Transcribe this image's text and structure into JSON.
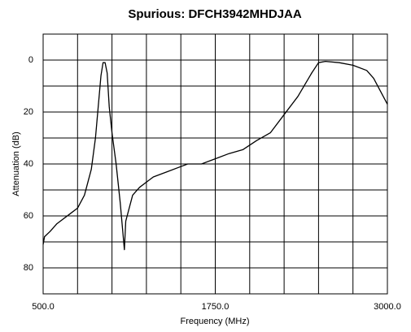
{
  "chart_data": {
    "type": "line",
    "title": "Spurious: DFCH3942MHDJAA",
    "xlabel": "Frequency (MHz)",
    "ylabel": "Attenuation (dB)",
    "x": [
      500,
      510,
      550,
      600,
      700,
      750,
      800,
      850,
      880,
      900,
      920,
      935,
      950,
      965,
      980,
      1000,
      1030,
      1060,
      1090,
      1100,
      1150,
      1200,
      1250,
      1300,
      1400,
      1500,
      1550,
      1650,
      1750,
      1850,
      1950,
      2050,
      2150,
      2250,
      2350,
      2450,
      2500,
      2550,
      2650,
      2750,
      2850,
      2900,
      2950,
      3000
    ],
    "values": [
      71,
      68,
      66,
      63,
      59,
      57,
      52,
      42,
      30,
      18,
      6,
      1,
      1,
      5,
      18,
      28,
      40,
      55,
      73,
      62,
      52,
      49,
      47,
      45,
      43,
      41,
      40,
      40,
      38,
      36,
      34.5,
      31,
      28,
      21,
      14,
      5,
      1,
      0.5,
      1,
      2,
      4,
      7,
      12,
      17
    ],
    "color": "#000000",
    "xlim": [
      500,
      3000
    ],
    "xticks": [
      {
        "value": 500,
        "label": "500.0"
      },
      {
        "value": 750,
        "label": null
      },
      {
        "value": 1000,
        "label": null
      },
      {
        "value": 1250,
        "label": null
      },
      {
        "value": 1500,
        "label": null
      },
      {
        "value": 1750,
        "label": "1750.0"
      },
      {
        "value": 2000,
        "label": null
      },
      {
        "value": 2250,
        "label": null
      },
      {
        "value": 2500,
        "label": null
      },
      {
        "value": 2750,
        "label": null
      },
      {
        "value": 3000,
        "label": "3000.0"
      }
    ],
    "ylim": [
      -10,
      90
    ],
    "yticks": [
      {
        "value": -10,
        "label": null
      },
      0,
      {
        "value": 10,
        "label": null
      },
      20,
      {
        "value": 30,
        "label": null
      },
      40,
      {
        "value": 50,
        "label": null
      },
      60,
      {
        "value": 70,
        "label": null
      },
      80,
      {
        "value": 90,
        "label": null
      }
    ],
    "y_inverted": true,
    "grid": true
  }
}
